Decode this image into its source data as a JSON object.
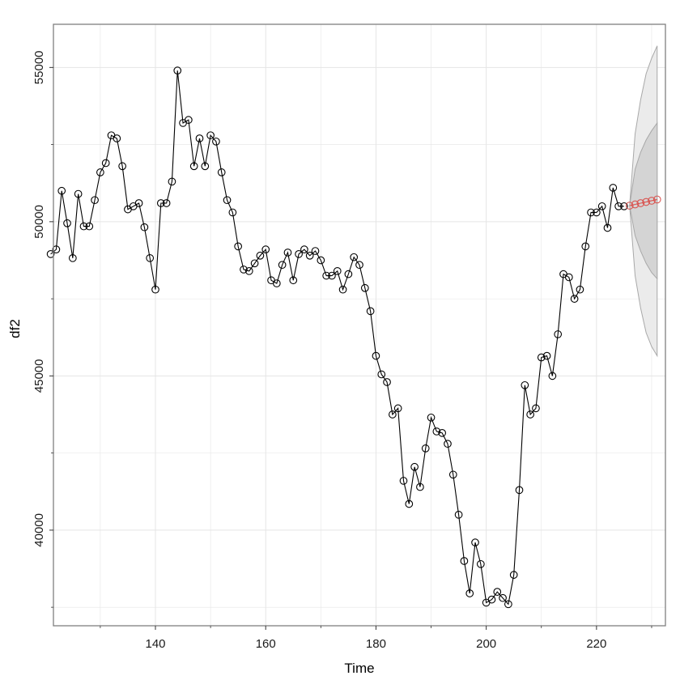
{
  "chart_data": {
    "type": "line",
    "xlabel": "Time",
    "ylabel": "df2",
    "xlim": [
      121.5,
      232.5
    ],
    "ylim": [
      36900,
      56400
    ],
    "x_ticks": [
      140,
      160,
      180,
      200,
      220
    ],
    "x_tick_labels": [
      "140",
      "160",
      "180",
      "200",
      "220"
    ],
    "y_ticks": [
      40000,
      45000,
      50000,
      55000
    ],
    "y_tick_labels": [
      "40000",
      "45000",
      "50000",
      "55000"
    ],
    "grid": true,
    "legend": "none",
    "colors": {
      "observed": "#000000",
      "forecast": "#d9534f",
      "band_outer": "#ebebeb",
      "band_inner": "#d4d4d4",
      "band_edge": "#a8a8a8",
      "grid": "#e5e5e5",
      "panel_border": "#7f7f7f"
    },
    "series": [
      {
        "role": "observed",
        "x_start": 121,
        "values": [
          48950,
          49100,
          51000,
          49950,
          48820,
          50900,
          49850,
          49850,
          50700,
          51600,
          51900,
          52800,
          52700,
          51800,
          50400,
          50500,
          50600,
          49820,
          48820,
          47800,
          50600,
          50600,
          51300,
          54900,
          53200,
          53300,
          51800,
          52700,
          51800,
          52800,
          52600,
          51600,
          50700,
          50300,
          49200,
          48450,
          48400,
          48650,
          48900,
          49100,
          48100,
          48000,
          48600,
          49000,
          48100,
          48950,
          49100,
          48900,
          49050,
          48750,
          48250,
          48250,
          48400,
          47800,
          48300,
          48850,
          48600,
          47850,
          47100,
          45650,
          45050,
          44800,
          43750,
          43950,
          41600,
          40850,
          42050,
          41400,
          42650,
          43650,
          43200,
          43150,
          42800,
          41800,
          40500,
          39000,
          37950,
          39600,
          38900,
          37650,
          37750,
          38000,
          37800,
          37600,
          38550,
          41300,
          44700,
          43750,
          43950,
          45600,
          45650,
          45000,
          46350,
          48300,
          48200,
          47500,
          47800,
          49200,
          50300,
          50300,
          50500,
          49800,
          51100,
          50500,
          50500
        ]
      },
      {
        "role": "forecast",
        "x_start": 226,
        "values": [
          50520,
          50560,
          50600,
          50640,
          50680,
          50720
        ]
      }
    ],
    "forecast_band": {
      "x": [
        226,
        227,
        228,
        229,
        230,
        231
      ],
      "mean": [
        50520,
        50560,
        50600,
        50640,
        50680,
        50720
      ],
      "lower_80": [
        50520,
        49550,
        49050,
        48650,
        48350,
        48150
      ],
      "upper_80": [
        50520,
        51700,
        52250,
        52650,
        52950,
        53200
      ],
      "lower_95": [
        50520,
        48250,
        47200,
        46400,
        45950,
        45650
      ],
      "upper_95": [
        50520,
        52850,
        53950,
        54800,
        55300,
        55700
      ]
    }
  }
}
